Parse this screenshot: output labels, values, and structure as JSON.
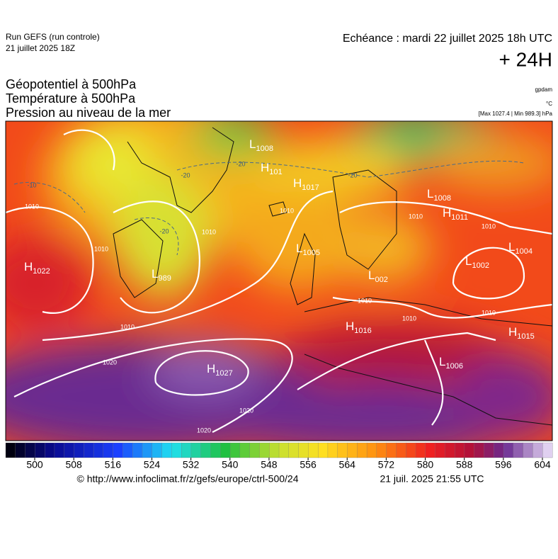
{
  "header": {
    "run": "Run GEFS (run controle)",
    "run_date": "21 juillet 2025 18Z",
    "valid": "Echéance : mardi 22 juillet 2025 18h UTC",
    "lead": "+ 24H",
    "fields": [
      "Géopotentiel à 500hPa",
      "Température à 500hPa",
      "Pression au niveau de la mer"
    ],
    "units": [
      "gpdam",
      "°C",
      "[Max 1027.4 | Min 989.3] hPa"
    ]
  },
  "map": {
    "centers": [
      {
        "kind": "L",
        "value": "1008"
      },
      {
        "kind": "H",
        "value": "101"
      },
      {
        "kind": "H",
        "value": "1017"
      },
      {
        "kind": "L",
        "value": "1005"
      },
      {
        "kind": "L",
        "value": "989"
      },
      {
        "kind": "H",
        "value": "1022"
      },
      {
        "kind": "H",
        "value": "1027"
      },
      {
        "kind": "H",
        "value": "1016"
      },
      {
        "kind": "L",
        "value": "1006"
      },
      {
        "kind": "H",
        "value": "1015"
      },
      {
        "kind": "L",
        "value": "1002"
      },
      {
        "kind": "L",
        "value": "1004"
      },
      {
        "kind": "H",
        "value": "1011"
      },
      {
        "kind": "L",
        "value": "1008"
      },
      {
        "kind": "L",
        "value": "002"
      }
    ],
    "isobar_labels": [
      "1010",
      "1010",
      "1010",
      "1010",
      "1010",
      "1010",
      "1010",
      "1010",
      "1010",
      "1010",
      "1020",
      "1020",
      "1020"
    ],
    "temperature_labels": [
      "-20",
      "-20",
      "-20",
      "-20",
      "-10"
    ]
  },
  "colorbar": {
    "ticks": [
      500,
      508,
      516,
      524,
      532,
      540,
      548,
      556,
      564,
      572,
      580,
      588,
      596,
      604
    ]
  },
  "footer": {
    "source": "© http://www.infoclimat.fr/z/gefs/europe/ctrl-500/24",
    "generated": "21 juil. 2025 21:55 UTC"
  }
}
